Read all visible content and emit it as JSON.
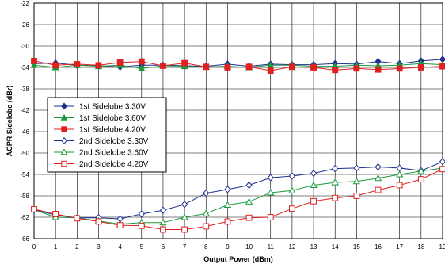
{
  "chart_data": {
    "type": "line",
    "title": "",
    "xlabel": "Output Power (dBm)",
    "ylabel": "ACPR Sidelobe (dBr)",
    "xlim": [
      0,
      19
    ],
    "ylim": [
      -66,
      -22
    ],
    "x_ticks": [
      0,
      1,
      2,
      3,
      4,
      5,
      6,
      7,
      8,
      9,
      10,
      11,
      12,
      13,
      14,
      15,
      16,
      17,
      18,
      19
    ],
    "y_ticks": [
      -22,
      -26,
      -30,
      -34,
      -38,
      -42,
      -46,
      -50,
      -54,
      -58,
      -62,
      -66
    ],
    "grid": true,
    "legend_position": "left",
    "x": [
      0,
      1,
      2,
      3,
      4,
      5,
      6,
      7,
      8,
      9,
      10,
      11,
      12,
      13,
      14,
      15,
      16,
      17,
      18,
      19
    ],
    "series": [
      {
        "name": "1st Sidelobe 3.30V",
        "color": "#1f2f8f",
        "marker": "diamond",
        "filled": true,
        "values": [
          -33.3,
          -33.2,
          -33.6,
          -33.7,
          -33.9,
          -33.6,
          -33.6,
          -33.7,
          -33.8,
          -33.4,
          -33.8,
          -33.4,
          -33.5,
          -33.5,
          -33.3,
          -33.4,
          -32.9,
          -33.3,
          -32.8,
          -32.5
        ]
      },
      {
        "name": "1st Sidelobe 3.60V",
        "color": "#1a9a3a",
        "marker": "triangle",
        "filled": true,
        "values": [
          -33.6,
          -34.0,
          -33.6,
          -33.8,
          -33.6,
          -34.2,
          -33.7,
          -33.8,
          -33.9,
          -33.8,
          -34.0,
          -33.6,
          -33.6,
          -33.8,
          -33.8,
          -33.6,
          -33.7,
          -33.6,
          -33.3,
          -33.5
        ]
      },
      {
        "name": "1st Sidelobe 4.20V",
        "color": "#e02020",
        "marker": "square",
        "filled": true,
        "values": [
          -32.8,
          -33.6,
          -33.4,
          -33.6,
          -33.1,
          -32.9,
          -33.7,
          -33.2,
          -33.9,
          -34.0,
          -33.9,
          -34.6,
          -33.9,
          -34.0,
          -34.5,
          -34.2,
          -34.4,
          -34.2,
          -34.0,
          -33.8
        ]
      },
      {
        "name": "2nd Sidelobe 3.30V",
        "color": "#1f2f8f",
        "marker": "diamond",
        "filled": false,
        "values": [
          -60.6,
          -61.6,
          -62.1,
          -62.1,
          -62.3,
          -61.4,
          -60.7,
          -59.6,
          -57.5,
          -56.8,
          -56.0,
          -54.6,
          -54.3,
          -53.8,
          -52.9,
          -52.8,
          -52.6,
          -52.8,
          -53.3,
          -51.6
        ]
      },
      {
        "name": "2nd Sidelobe 3.60V",
        "color": "#1a9a3a",
        "marker": "triangle",
        "filled": false,
        "values": [
          -60.6,
          -62.0,
          -62.1,
          -62.7,
          -63.3,
          -63.0,
          -63.0,
          -62.0,
          -61.3,
          -59.7,
          -59.1,
          -57.4,
          -57.0,
          -56.0,
          -55.5,
          -55.3,
          -54.7,
          -54.0,
          -53.4,
          -52.8
        ]
      },
      {
        "name": "2nd Sidelobe 4.20V",
        "color": "#e02020",
        "marker": "square",
        "filled": false,
        "values": [
          -60.5,
          -61.4,
          -62.2,
          -62.8,
          -63.5,
          -63.6,
          -64.3,
          -64.3,
          -63.7,
          -62.8,
          -62.1,
          -62.0,
          -60.4,
          -59.0,
          -58.4,
          -58.0,
          -56.9,
          -56.0,
          -54.9,
          -53.0
        ]
      }
    ]
  }
}
